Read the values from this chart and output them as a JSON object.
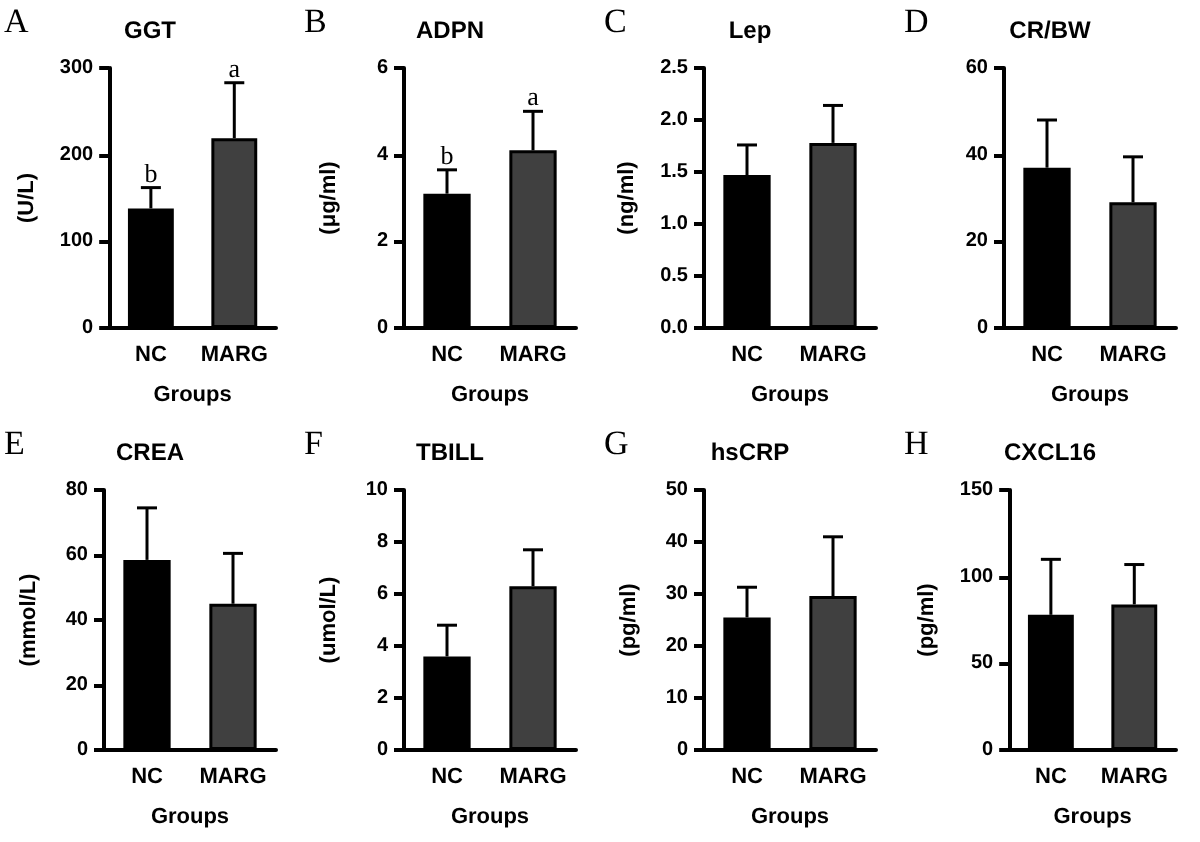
{
  "chart_data": [
    {
      "type": "bar",
      "title": "GGT",
      "xlabel": "Groups",
      "ylabel": "(U/L)",
      "categories": [
        "NC",
        "MARG"
      ],
      "values": [
        138,
        219
      ],
      "colors": [
        "#000000",
        "#404040"
      ],
      "errors": [
        [
          138,
          162
        ],
        [
          219,
          283
        ]
      ],
      "ylim": [
        0,
        300
      ],
      "yticks": [
        0,
        100,
        200,
        300
      ],
      "annotations": [
        "A",
        {
          "text": "b",
          "x": "NC",
          "y": 162
        },
        {
          "text": "a",
          "x": "MARG",
          "y": 283
        }
      ]
    },
    {
      "type": "bar",
      "title": "ADPN",
      "xlabel": "Groups",
      "ylabel": "(μg/ml)",
      "categories": [
        "NC",
        "MARG"
      ],
      "values": [
        3.1,
        4.1
      ],
      "colors": [
        "#000000",
        "#404040"
      ],
      "errors": [
        [
          3.1,
          3.65
        ],
        [
          4.1,
          5.0
        ]
      ],
      "ylim": [
        0,
        6
      ],
      "yticks": [
        0,
        2,
        4,
        6
      ],
      "annotations": [
        "B",
        {
          "text": "b",
          "x": "NC",
          "y": 3.65
        },
        {
          "text": "a",
          "x": "MARG",
          "y": 5.0
        }
      ]
    },
    {
      "type": "bar",
      "title": "Lep",
      "xlabel": "Groups",
      "ylabel": "(ng/ml)",
      "categories": [
        "NC",
        "MARG"
      ],
      "values": [
        1.47,
        1.78
      ],
      "colors": [
        "#000000",
        "#404040"
      ],
      "errors": [
        [
          1.47,
          1.76
        ],
        [
          1.78,
          2.14
        ]
      ],
      "ylim": [
        0,
        2.5
      ],
      "yticks": [
        {
          "value": 0,
          "label": "0.0"
        },
        0.5,
        {
          "value": 1,
          "label": "1.0"
        },
        1.5,
        {
          "value": 2,
          "label": "2.0"
        },
        2.5
      ],
      "annotations": [
        "C"
      ]
    },
    {
      "type": "bar",
      "title": "CR/BW",
      "xlabel": "Groups",
      "categories": [
        "NC",
        "MARG"
      ],
      "values": [
        37,
        29
      ],
      "colors": [
        "#000000",
        "#404040"
      ],
      "errors": [
        [
          37,
          48
        ],
        [
          29,
          39.5
        ]
      ],
      "ylim": [
        0,
        60
      ],
      "yticks": [
        0,
        20,
        40,
        60
      ],
      "annotations": [
        "D"
      ]
    },
    {
      "type": "bar",
      "title": "CREA",
      "xlabel": "Groups",
      "ylabel": "(mmol/L)",
      "categories": [
        "NC",
        "MARG"
      ],
      "values": [
        58.5,
        45
      ],
      "colors": [
        "#000000",
        "#404040"
      ],
      "errors": [
        [
          58.5,
          74.5
        ],
        [
          45,
          60.5
        ]
      ],
      "ylim": [
        0,
        80
      ],
      "yticks": [
        0,
        20,
        40,
        60,
        80
      ],
      "annotations": [
        "E"
      ]
    },
    {
      "type": "bar",
      "title": "TBILL",
      "xlabel": "Groups",
      "ylabel": "(umol/L)",
      "categories": [
        "NC",
        "MARG"
      ],
      "values": [
        3.6,
        6.3
      ],
      "colors": [
        "#000000",
        "#404040"
      ],
      "errors": [
        [
          3.6,
          4.8
        ],
        [
          6.3,
          7.7
        ]
      ],
      "ylim": [
        0,
        10
      ],
      "yticks": [
        0,
        2,
        4,
        6,
        8,
        10
      ],
      "annotations": [
        "F"
      ]
    },
    {
      "type": "bar",
      "title": "hsCRP",
      "xlabel": "Groups",
      "ylabel": "(pg/ml)",
      "categories": [
        "NC",
        "MARG"
      ],
      "values": [
        25.5,
        29.6
      ],
      "colors": [
        "#000000",
        "#404040"
      ],
      "errors": [
        [
          25.5,
          31.3
        ],
        [
          29.6,
          41
        ]
      ],
      "ylim": [
        0,
        50
      ],
      "yticks": [
        0,
        10,
        20,
        30,
        40,
        50
      ],
      "annotations": [
        "G"
      ]
    },
    {
      "type": "bar",
      "title": "CXCL16",
      "xlabel": "Groups",
      "ylabel": "(pg/ml)",
      "categories": [
        "NC",
        "MARG"
      ],
      "values": [
        78,
        84
      ],
      "colors": [
        "#000000",
        "#404040"
      ],
      "errors": [
        [
          78,
          110
        ],
        [
          84,
          107
        ]
      ],
      "ylim": [
        0,
        150
      ],
      "yticks": [
        0,
        50,
        100,
        150
      ],
      "annotations": [
        "H"
      ]
    }
  ]
}
